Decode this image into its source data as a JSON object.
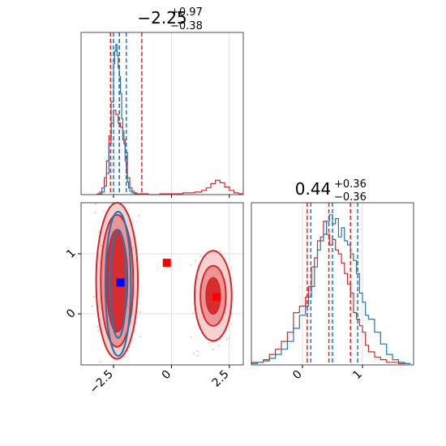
{
  "colors": {
    "red": "#d62728",
    "blue": "#1f77b4",
    "marker_blue": "#0000ff",
    "marker_red": "#ff0000"
  },
  "chart_data": [
    {
      "type": "histogram",
      "panel": "top-left",
      "title": {
        "value": "−2.25",
        "plus": "+0.97",
        "minus": "−0.38"
      },
      "xlim": [
        -3.9,
        3.1
      ],
      "xticks": [
        -2.5,
        0.0,
        2.5
      ],
      "grid": true,
      "quantile_lines": {
        "red": [
          -2.63,
          -2.25,
          -1.28
        ],
        "blue": [
          -2.5,
          -2.25,
          -1.95
        ]
      },
      "series": [
        {
          "color": "red",
          "x": [
            -3.2,
            -3.1,
            -3.0,
            -2.9,
            -2.8,
            -2.7,
            -2.6,
            -2.5,
            -2.4,
            -2.3,
            -2.2,
            -2.1,
            -2.0,
            -1.9,
            -1.8,
            -1.7,
            -1.6,
            -1.5,
            -1.4,
            -1.3,
            -1.2,
            -1.0,
            -0.5,
            0.0,
            0.5,
            1.0,
            1.3,
            1.5,
            1.7,
            1.9,
            2.1,
            2.3,
            2.5,
            2.7,
            2.9
          ],
          "y": [
            1,
            3,
            8,
            20,
            40,
            70,
            85,
            100,
            95,
            85,
            80,
            65,
            50,
            20,
            8,
            4,
            2,
            1,
            1,
            1,
            1,
            0,
            1,
            1,
            2,
            3,
            5,
            8,
            13,
            17,
            14,
            9,
            5,
            2,
            1
          ]
        },
        {
          "color": "blue",
          "x": [
            -3.1,
            -3.0,
            -2.9,
            -2.8,
            -2.7,
            -2.6,
            -2.5,
            -2.45,
            -2.4,
            -2.35,
            -2.3,
            -2.25,
            -2.2,
            -2.15,
            -2.1,
            -2.05,
            -2.0,
            -1.95,
            -1.9,
            -1.85,
            -1.8,
            -1.7,
            -1.6
          ],
          "y": [
            1,
            3,
            10,
            25,
            60,
            110,
            155,
            170,
            178,
            165,
            150,
            140,
            120,
            90,
            75,
            60,
            40,
            25,
            15,
            8,
            4,
            2,
            1
          ]
        }
      ]
    },
    {
      "type": "scatter-contour",
      "panel": "bottom-left",
      "xlim": [
        -3.9,
        3.1
      ],
      "ylim": [
        -0.85,
        1.85
      ],
      "xticks": [
        -2.5,
        0.0,
        2.5
      ],
      "yticks": [
        0,
        1
      ],
      "grid": true,
      "markers": [
        {
          "color": "marker_blue",
          "x": -2.2,
          "y": 0.52
        },
        {
          "color": "marker_red",
          "x": -0.2,
          "y": 0.85
        },
        {
          "color": "marker_red",
          "x": 1.95,
          "y": 0.28
        }
      ],
      "contours_red": [
        {
          "cx": -2.35,
          "cy": 0.55,
          "rx": 0.9,
          "ry": 1.3
        },
        {
          "cx": -2.35,
          "cy": 0.55,
          "rx": 0.7,
          "ry": 1.1
        },
        {
          "cx": -2.35,
          "cy": 0.55,
          "rx": 0.45,
          "ry": 0.85
        },
        {
          "cx": 1.8,
          "cy": 0.3,
          "rx": 0.8,
          "ry": 0.75
        },
        {
          "cx": 1.8,
          "cy": 0.3,
          "rx": 0.55,
          "ry": 0.5
        },
        {
          "cx": 1.8,
          "cy": 0.3,
          "rx": 0.3,
          "ry": 0.3
        }
      ],
      "contours_blue": [
        {
          "cx": -2.3,
          "cy": 0.5,
          "rx": 0.55,
          "ry": 1.2
        },
        {
          "cx": -2.3,
          "cy": 0.5,
          "rx": 0.35,
          "ry": 0.9
        }
      ]
    },
    {
      "type": "histogram",
      "panel": "bottom-right",
      "title": {
        "value": "0.44",
        "plus": "+0.36",
        "minus": "−0.36"
      },
      "xlim": [
        -0.85,
        1.85
      ],
      "xticks": [
        0,
        1
      ],
      "grid": true,
      "quantile_lines": {
        "red": [
          0.08,
          0.44,
          0.8
        ],
        "blue": [
          0.14,
          0.5,
          0.92
        ]
      },
      "series": [
        {
          "color": "red",
          "x": [
            -0.85,
            -0.75,
            -0.65,
            -0.55,
            -0.45,
            -0.35,
            -0.25,
            -0.15,
            -0.05,
            0.05,
            0.1,
            0.15,
            0.2,
            0.25,
            0.3,
            0.35,
            0.4,
            0.45,
            0.5,
            0.55,
            0.6,
            0.65,
            0.7,
            0.75,
            0.8,
            0.85,
            0.9,
            0.95,
            1.0,
            1.05,
            1.1,
            1.2,
            1.3,
            1.4,
            1.5,
            1.6,
            1.7
          ],
          "y": [
            2,
            2,
            4,
            8,
            12,
            18,
            25,
            40,
            45,
            52,
            60,
            75,
            82,
            95,
            98,
            110,
            100,
            92,
            96,
            88,
            85,
            78,
            70,
            62,
            55,
            40,
            35,
            30,
            25,
            15,
            10,
            6,
            4,
            2,
            2,
            1,
            1
          ]
        },
        {
          "color": "blue",
          "x": [
            -0.85,
            -0.75,
            -0.65,
            -0.55,
            -0.45,
            -0.35,
            -0.25,
            -0.15,
            -0.05,
            0.05,
            0.1,
            0.15,
            0.2,
            0.25,
            0.3,
            0.35,
            0.4,
            0.45,
            0.5,
            0.55,
            0.6,
            0.65,
            0.7,
            0.75,
            0.8,
            0.85,
            0.9,
            0.95,
            1.0,
            1.05,
            1.1,
            1.2,
            1.3,
            1.4,
            1.5,
            1.6,
            1.7
          ],
          "y": [
            1,
            2,
            3,
            5,
            8,
            12,
            18,
            28,
            38,
            45,
            52,
            60,
            75,
            88,
            95,
            100,
            110,
            115,
            108,
            112,
            98,
            105,
            95,
            92,
            85,
            80,
            70,
            55,
            48,
            38,
            35,
            25,
            16,
            8,
            4,
            2,
            1
          ]
        }
      ]
    }
  ]
}
